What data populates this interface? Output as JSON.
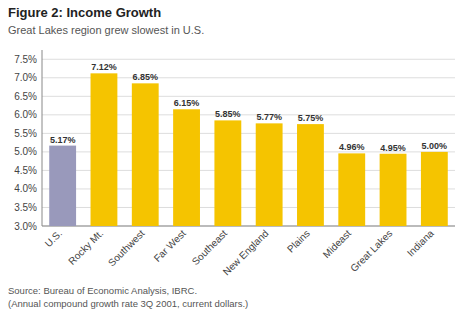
{
  "chart_data": {
    "type": "bar",
    "title": "Figure 2: Income Growth",
    "subtitle": "Great Lakes region grew slowest in U.S.",
    "categories": [
      "U.S.",
      "Rocky Mt.",
      "Southwest",
      "Far West",
      "Southeast",
      "New England",
      "Plains",
      "Mideast",
      "Great Lakes",
      "Indiana"
    ],
    "values": [
      5.17,
      7.12,
      6.85,
      6.15,
      5.85,
      5.77,
      5.75,
      4.96,
      4.95,
      5.0
    ],
    "value_labels": [
      "5.17%",
      "7.12%",
      "6.85%",
      "6.15%",
      "5.85%",
      "5.77%",
      "5.75%",
      "4.96%",
      "4.95%",
      "5.00%"
    ],
    "colors": [
      "#9999bb",
      "#F5C400",
      "#F5C400",
      "#F5C400",
      "#F5C400",
      "#F5C400",
      "#F5C400",
      "#F5C400",
      "#F5C400",
      "#F5C400"
    ],
    "ylim": [
      3.0,
      7.75
    ],
    "yticks": [
      {
        "value": 3.0,
        "label": "3.0%"
      },
      {
        "value": 3.5,
        "label": "3.5%"
      },
      {
        "value": 4.0,
        "label": "4.0%"
      },
      {
        "value": 4.5,
        "label": "4.5%"
      },
      {
        "value": 5.0,
        "label": "5.0%"
      },
      {
        "value": 5.5,
        "label": "5.5%"
      },
      {
        "value": 6.0,
        "label": "6.0%"
      },
      {
        "value": 6.5,
        "label": "6.5%"
      },
      {
        "value": 7.0,
        "label": "7.0%"
      },
      {
        "value": 7.5,
        "label": "7.5%"
      }
    ],
    "grid": true,
    "data_labels": true,
    "annotations": [
      "Source: Bureau of Economic Analysis, IBRC.",
      "(Annual compound growth rate 3Q 2001, current dollars.)"
    ]
  }
}
